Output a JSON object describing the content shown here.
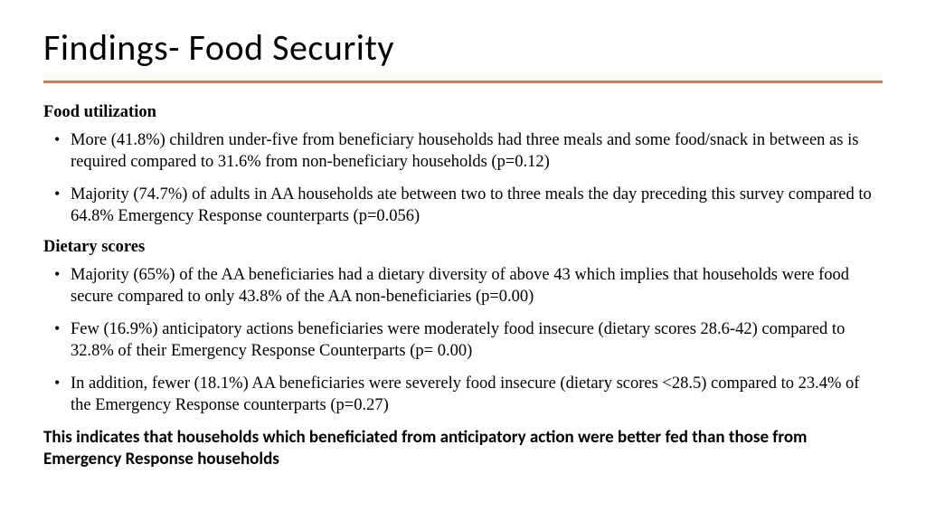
{
  "slide": {
    "title": "Findings- Food Security",
    "accent_color": "#e07b3c",
    "sections": [
      {
        "heading": "Food utilization",
        "bullets": [
          "More (41.8%) children under-five from beneficiary households had three meals and some food/snack in between as is required compared to 31.6% from non-beneficiary households (p=0.12)",
          "Majority (74.7%) of adults in AA households ate between two to three meals the day preceding this survey compared to 64.8% Emergency Response counterparts (p=0.056)"
        ]
      },
      {
        "heading": "Dietary scores",
        "bullets": [
          "Majority (65%) of the AA beneficiaries had a dietary diversity of above 43 which implies that households were food secure compared to only 43.8% of the AA non-beneficiaries (p=0.00)",
          "Few (16.9%) anticipatory actions beneficiaries were moderately food insecure (dietary scores 28.6-42) compared to 32.8% of their Emergency Response Counterparts (p= 0.00)",
          "In addition, fewer (18.1%) AA beneficiaries were severely food insecure (dietary scores <28.5) compared to 23.4% of the Emergency Response counterparts (p=0.27)"
        ]
      }
    ],
    "conclusion": "This indicates that  households which beneficiated from anticipatory action were better fed than those from Emergency Response households"
  }
}
